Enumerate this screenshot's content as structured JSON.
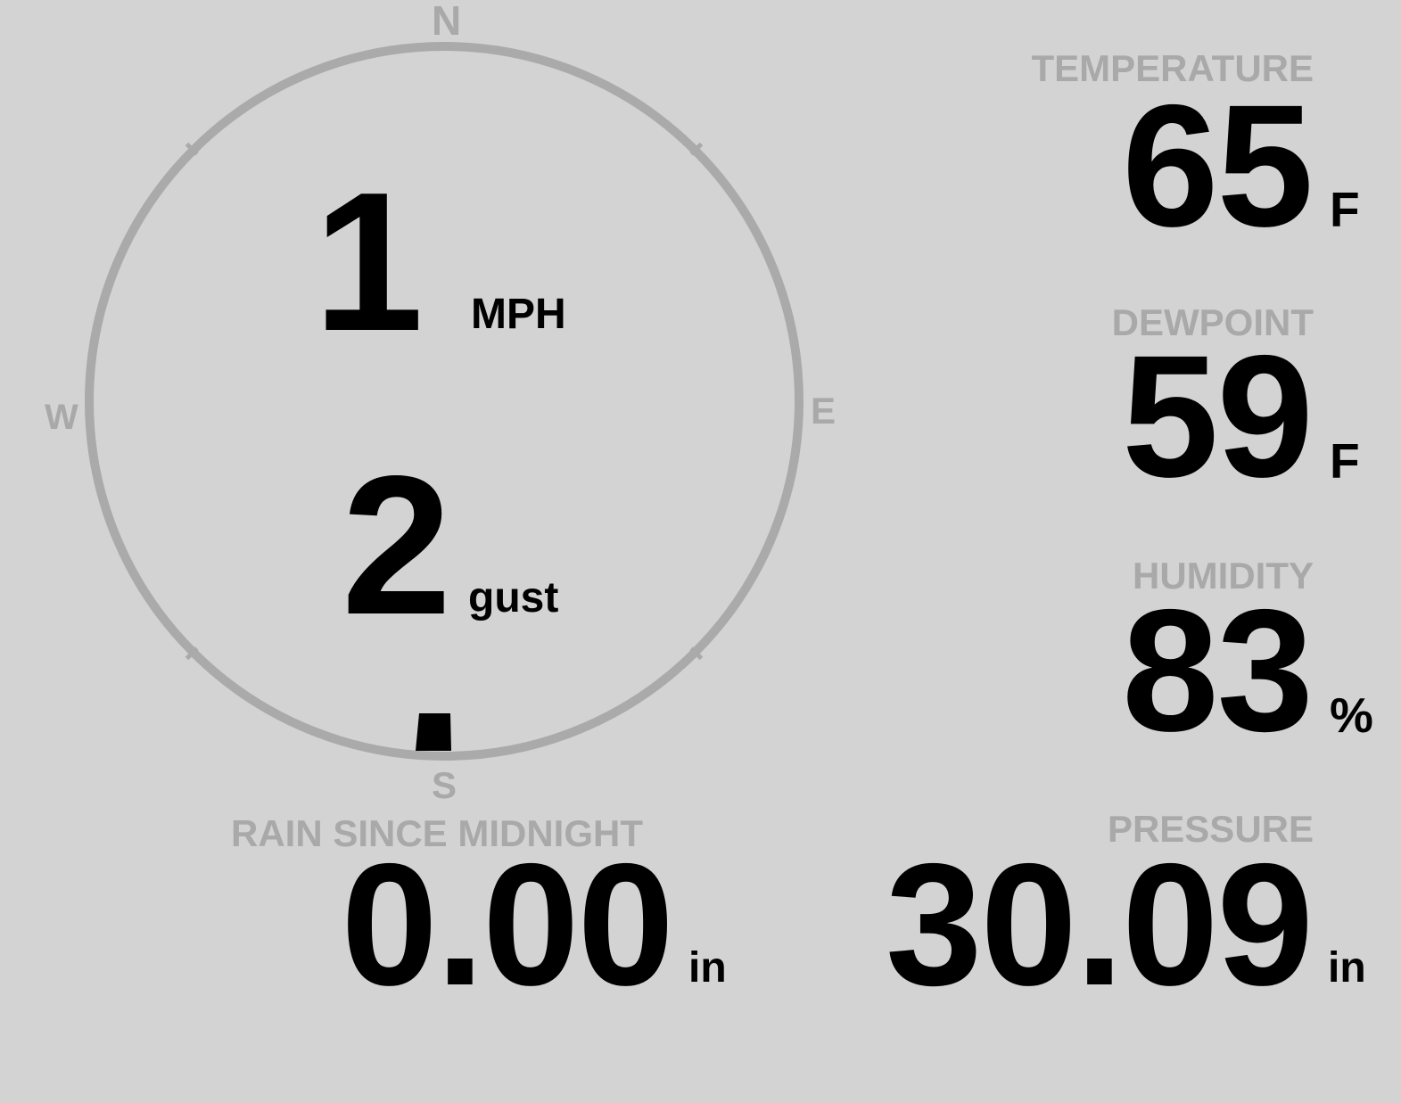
{
  "wind": {
    "speed": "1",
    "speed_unit": "MPH",
    "gust": "2",
    "gust_unit": "gust",
    "direction": "S",
    "direction_degrees": 180,
    "compass": {
      "n": "N",
      "e": "E",
      "s": "S",
      "w": "W"
    },
    "ring_color": "#aaaaaa"
  },
  "temperature": {
    "label": "TEMPERATURE",
    "value": "65",
    "unit": "F"
  },
  "dewpoint": {
    "label": "DEWPOINT",
    "value": "59",
    "unit": "F"
  },
  "humidity": {
    "label": "HUMIDITY",
    "value": "83",
    "unit": "%"
  },
  "rain": {
    "label": "RAIN SINCE MIDNIGHT",
    "value": "0.00",
    "unit": "in"
  },
  "pressure": {
    "label": "PRESSURE",
    "value": "30.09",
    "unit": "in"
  },
  "colors": {
    "background": "#d3d3d3",
    "label": "#a9a9a9",
    "value": "#000000"
  }
}
